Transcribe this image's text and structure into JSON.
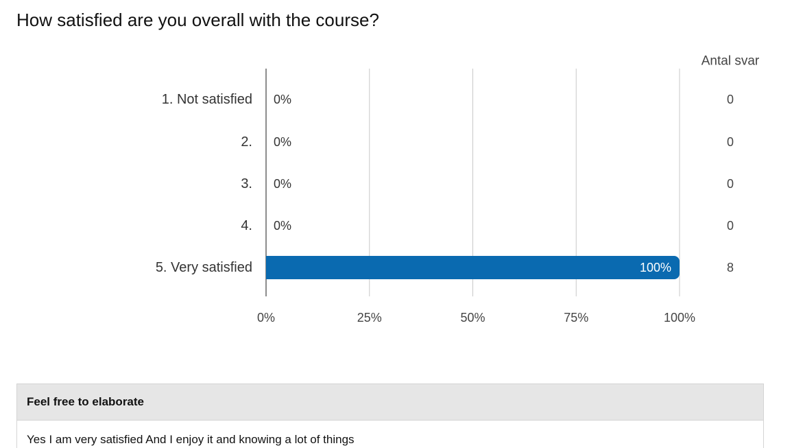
{
  "question": {
    "title": "How satisfied are you overall with the course?"
  },
  "chart_data": {
    "type": "bar",
    "orientation": "horizontal",
    "categories": [
      "1. Not satisfied",
      "2.",
      "3.",
      "4.",
      "5. Very satisfied"
    ],
    "values": [
      0,
      0,
      0,
      0,
      100
    ],
    "value_labels": [
      "0%",
      "0%",
      "0%",
      "0%",
      "100%"
    ],
    "counts_header": "Antal svar",
    "counts": [
      "0",
      "0",
      "0",
      "0",
      "8"
    ],
    "xlim": [
      0,
      100
    ],
    "xticks": [
      0,
      25,
      50,
      75,
      100
    ],
    "xtick_labels": [
      "0%",
      "25%",
      "50%",
      "75%",
      "100%"
    ],
    "grid": true,
    "bar_color": "#0a6ab0"
  },
  "comments": {
    "header": "Feel free to elaborate",
    "rows": [
      "Yes I am very satisfied And I enjoy it and knowing a lot of things"
    ]
  }
}
